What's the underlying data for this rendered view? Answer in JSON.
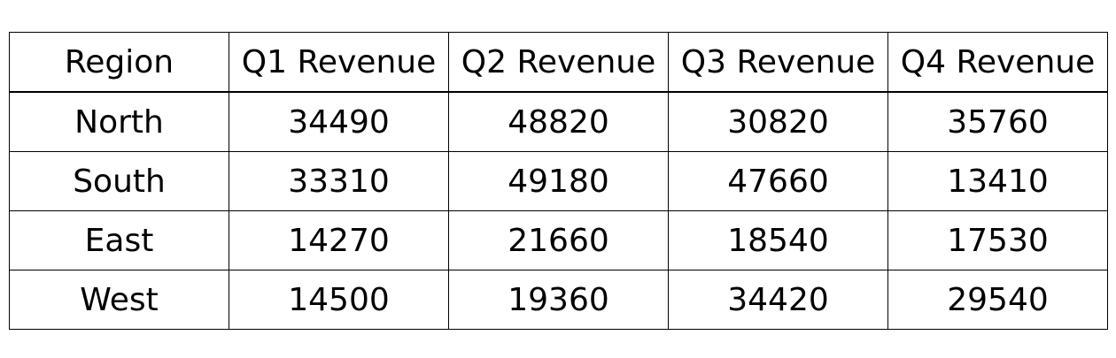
{
  "chart_data": {
    "type": "table",
    "columns": [
      "Region",
      "Q1 Revenue",
      "Q2 Revenue",
      "Q3 Revenue",
      "Q4 Revenue"
    ],
    "rows": [
      [
        "North",
        "34490",
        "48820",
        "30820",
        "35760"
      ],
      [
        "South",
        "33310",
        "49180",
        "47660",
        "13410"
      ],
      [
        "East",
        "14270",
        "21660",
        "18540",
        "17530"
      ],
      [
        "West",
        "14500",
        "19360",
        "34420",
        "29540"
      ]
    ]
  }
}
